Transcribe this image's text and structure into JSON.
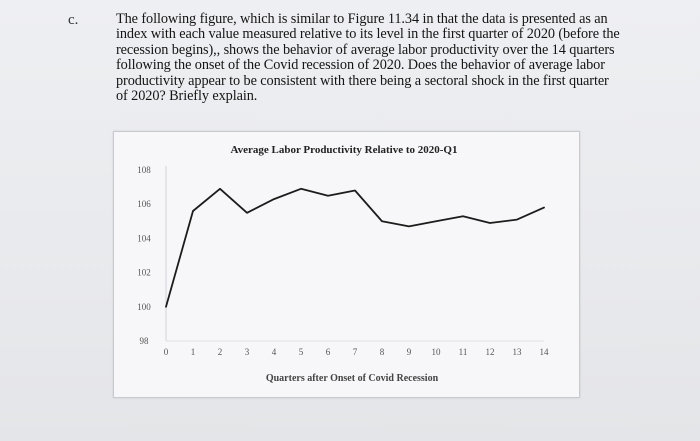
{
  "item_label": "c.",
  "question_text": "The following figure, which is similar to Figure 11.34 in that the data is presented as an index with each value measured relative to its level in the first quarter of 2020 (before the recession begins),, shows the behavior of average labor productivity over the 14 quarters following the onset of the Covid recession of 2020.  Does the behavior of average labor productivity appear to be consistent with there being a sectoral shock in the first quarter of 2020? Briefly explain.",
  "chart_data": {
    "type": "line",
    "title": "Average Labor Productivity Relative to 2020-Q1",
    "xlabel": "Quarters after Onset of Covid Recession",
    "ylabel": "",
    "x": [
      0,
      1,
      2,
      3,
      4,
      5,
      6,
      7,
      8,
      9,
      10,
      11,
      12,
      13,
      14
    ],
    "series": [
      {
        "values": [
          100.0,
          105.6,
          106.9,
          105.5,
          106.3,
          106.9,
          106.5,
          106.8,
          105.0,
          104.7,
          105.0,
          105.3,
          104.9,
          105.1,
          105.8
        ]
      }
    ],
    "xlim": [
      0,
      14
    ],
    "ylim": [
      98,
      108
    ],
    "xticks": [
      "0",
      "1",
      "2",
      "3",
      "4",
      "5",
      "6",
      "7",
      "8",
      "9",
      "10",
      "11",
      "12",
      "13",
      "14"
    ],
    "yticks": [
      "98",
      "100",
      "102",
      "104",
      "106",
      "108"
    ],
    "line_color": "#1c1c1c",
    "grid": false
  }
}
